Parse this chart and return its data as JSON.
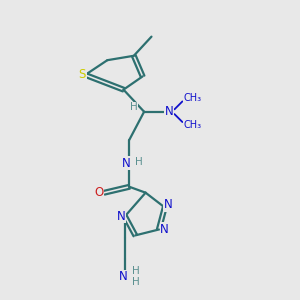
{
  "bg_color": "#e8e8e8",
  "bond_color": "#2d7070",
  "N_color": "#1010cc",
  "O_color": "#cc2020",
  "S_color": "#cccc00",
  "H_color": "#5a9090",
  "figsize": [
    3.0,
    3.0
  ],
  "dpi": 100,
  "xlim": [
    0,
    10
  ],
  "ylim": [
    0,
    10
  ]
}
